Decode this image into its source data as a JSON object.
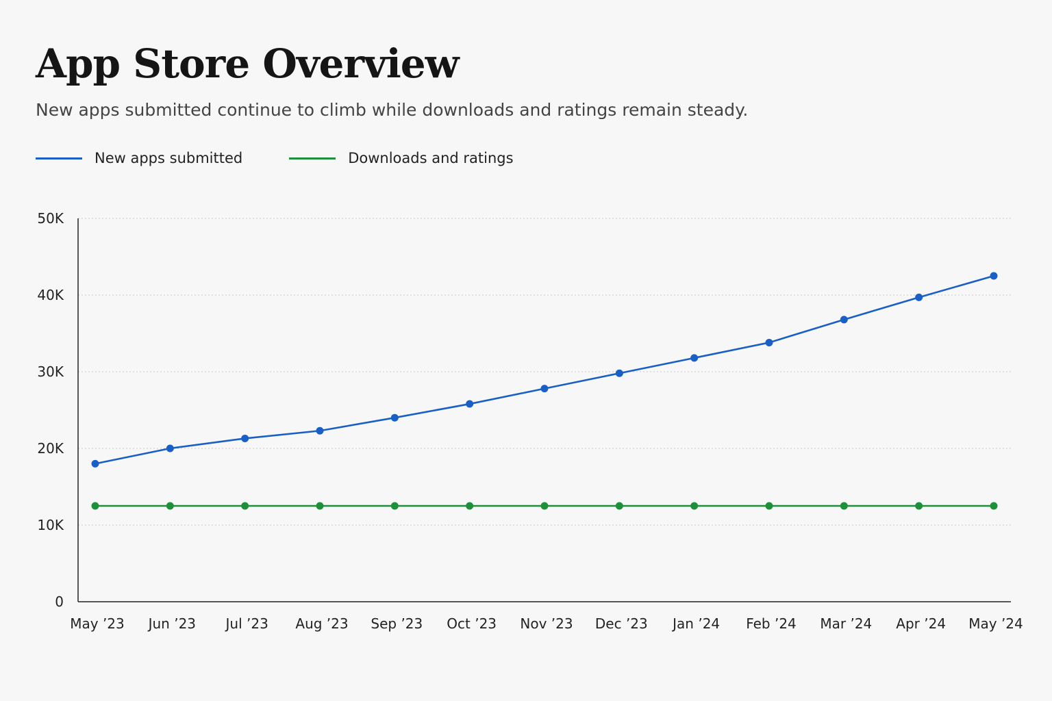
{
  "header": {
    "title": "App Store Overview",
    "subtitle": "New apps submitted continue to climb while downloads and ratings remain steady."
  },
  "chart_data": {
    "type": "line",
    "title": "",
    "xlabel": "",
    "ylabel": "",
    "categories": [
      "May ’23",
      "Jun ’23",
      "Jul ’23",
      "Aug ’23",
      "Sep ’23",
      "Oct ’23",
      "Nov ’23",
      "Dec ’23",
      "Jan ’24",
      "Feb ’24",
      "Mar ’24",
      "Apr ’24",
      "May ’24"
    ],
    "y_ticks": [
      "0",
      "10K",
      "20K",
      "30K",
      "40K",
      "50K"
    ],
    "ylim": [
      0,
      50000
    ],
    "grid": true,
    "legend_position": "top-left",
    "series": [
      {
        "name": "New apps submitted",
        "color": "#1a5fc4",
        "values": [
          18000,
          20000,
          21300,
          22300,
          24000,
          25800,
          27800,
          29800,
          31800,
          33800,
          36800,
          39700,
          42500
        ]
      },
      {
        "name": "Downloads and ratings",
        "color": "#1e8f3a",
        "values": [
          12500,
          12500,
          12500,
          12500,
          12500,
          12500,
          12500,
          12500,
          12500,
          12500,
          12500,
          12500,
          12500
        ]
      }
    ]
  }
}
